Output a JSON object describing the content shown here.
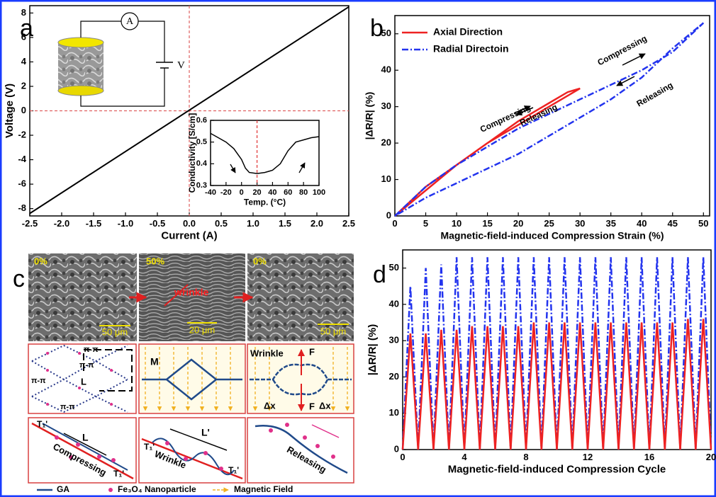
{
  "chart_data": [
    {
      "type": "line",
      "label": "a",
      "xlabel": "Current (A)",
      "ylabel": "Voltage (V)",
      "x": [
        -2.5,
        2.5
      ],
      "series": [
        {
          "color": "#000000",
          "style": "solid",
          "values": [
            -8.4,
            8.5
          ]
        }
      ],
      "xlim": [
        -2.5,
        2.5
      ],
      "ylim": [
        -8.6,
        8.6
      ],
      "xticks": [
        -2.5,
        {
          "value": -2.0,
          "label": "-2.0"
        },
        -1.5,
        {
          "value": -1.0,
          "label": "-1.0"
        },
        -0.5,
        {
          "value": 0.0,
          "label": "0.0"
        },
        0.5,
        {
          "value": 1.0,
          "label": "1.0"
        },
        1.5,
        {
          "value": 2.0,
          "label": "2.0"
        },
        2.5
      ],
      "yticks": [
        -8,
        -6,
        -4,
        -2,
        0,
        2,
        4,
        6,
        8
      ],
      "refs": {
        "x": [
          0
        ],
        "y": [
          0
        ],
        "color": "#e06060"
      },
      "schematic_labels": [
        "A",
        "V"
      ]
    },
    {
      "type": "line",
      "label": "b",
      "xlabel": "Magnetic-field-induced Compression Strain (%)",
      "ylabel": "|ΔR/R| (%)",
      "series": [
        {
          "name": "Axial Direction",
          "color": "#ee2222",
          "style": "solid",
          "x": [
            0,
            5,
            10,
            15,
            20,
            25,
            28,
            30,
            28,
            25,
            20,
            15,
            10,
            5,
            0
          ],
          "values": [
            0,
            8,
            14,
            20,
            25,
            30,
            33,
            35,
            34,
            31,
            26,
            20,
            14,
            7,
            0
          ]
        },
        {
          "name": "Radial Directoin",
          "color": "#2233ee",
          "style": "dashdot",
          "x": [
            0,
            5,
            10,
            15,
            20,
            25,
            30,
            35,
            40,
            45,
            50,
            45,
            40,
            35,
            30,
            25,
            20,
            15,
            10,
            5,
            0
          ],
          "values": [
            0,
            8,
            14,
            19,
            24,
            28,
            32,
            36,
            40,
            45,
            53,
            46,
            38,
            32,
            27,
            22,
            17,
            13,
            9,
            5,
            0
          ]
        }
      ],
      "xlim": [
        0,
        51
      ],
      "ylim": [
        0,
        55
      ],
      "xticks": [
        0,
        5,
        10,
        15,
        20,
        25,
        30,
        35,
        40,
        45,
        50
      ],
      "yticks": [
        0,
        10,
        20,
        30,
        40,
        50
      ],
      "legend": "top-left",
      "annotations": [
        "Compressing",
        "Releasing",
        "Compressing",
        "Releasing"
      ]
    },
    {
      "type": "line",
      "label": "d",
      "xlabel": "Magnetic-field-induced Compression Cycle",
      "ylabel": "|ΔR/R| (%)",
      "x": [
        0,
        0.5,
        1,
        1.5,
        2,
        2.5,
        3,
        3.5,
        4,
        4.5,
        5,
        5.5,
        6,
        6.5,
        7,
        7.5,
        8,
        8.5,
        9,
        9.5,
        10,
        10.5,
        11,
        11.5,
        12,
        12.5,
        13,
        13.5,
        14,
        14.5,
        15,
        15.5,
        16,
        16.5,
        17,
        17.5,
        18,
        18.5,
        19,
        19.5,
        20
      ],
      "series": [
        {
          "color": "#2233ee",
          "style": "dashdot",
          "values": [
            0,
            45,
            0,
            50,
            0,
            51,
            0,
            53,
            0,
            53,
            0,
            53,
            0,
            53,
            0,
            53,
            0,
            53,
            0,
            53,
            0,
            53,
            0,
            53,
            0,
            53,
            0,
            53,
            0,
            53,
            0,
            53,
            0,
            53,
            0,
            53,
            0,
            53,
            0,
            53,
            0
          ]
        },
        {
          "color": "#ee2222",
          "style": "solid",
          "values": [
            0,
            32,
            0,
            32,
            0,
            33,
            0,
            33,
            0,
            34,
            0,
            34,
            0,
            34,
            0,
            34,
            0,
            35,
            0,
            35,
            0,
            35,
            0,
            35,
            0,
            35,
            0,
            35,
            0,
            35,
            0,
            35,
            0,
            35,
            0,
            35,
            0,
            36,
            0,
            36,
            0
          ]
        }
      ],
      "xlim": [
        0,
        20
      ],
      "ylim": [
        0,
        55
      ],
      "xticks": [
        0,
        4,
        8,
        12,
        16,
        20
      ],
      "yticks": [
        0,
        10,
        20,
        30,
        40,
        50
      ]
    },
    {
      "type": "line",
      "xlabel": "Temp. (°C)",
      "ylabel": "Conductivity [S/cm]",
      "x": [
        -40,
        -30,
        -20,
        -10,
        0,
        5,
        10,
        20,
        30,
        40,
        50,
        60,
        70,
        80,
        90,
        100
      ],
      "series": [
        {
          "color": "#000000",
          "style": "solid",
          "values": [
            0.54,
            0.52,
            0.5,
            0.47,
            0.42,
            0.38,
            0.36,
            0.355,
            0.36,
            0.37,
            0.4,
            0.46,
            0.5,
            0.51,
            0.52,
            0.525
          ]
        }
      ],
      "xlim": [
        -40,
        100
      ],
      "ylim": [
        0.3,
        0.6
      ],
      "xticks": [
        -40,
        -20,
        0,
        20,
        40,
        60,
        80,
        100
      ],
      "yticks": [
        0.3,
        0.4,
        0.5,
        0.6
      ],
      "refs": {
        "x": [
          20
        ],
        "color": "#e03030"
      }
    }
  ],
  "diagram": {
    "label": "c",
    "sem": [
      {
        "strain": "0%",
        "scale": "50 μm"
      },
      {
        "strain": "50%",
        "scale": "20 μm",
        "note": "wrinkle"
      },
      {
        "strain": "0%",
        "scale": "50 μm"
      }
    ],
    "schematic_top": {
      "pi_labels": [
        "π-π",
        "π-π",
        "π-π",
        "π-π"
      ],
      "length": "L",
      "field": "M",
      "wrinkle": "Wrinkle",
      "force": [
        "F",
        "F"
      ],
      "dx": [
        "Δx",
        "Δx"
      ]
    },
    "schematic_bottom": {
      "compressing": "Compressing",
      "length": "L",
      "tension": [
        "T₁'",
        "T₁'",
        "T₁'",
        "T₁'"
      ],
      "wrinkle": "Wrinkle",
      "length2": "L'",
      "releasing": "Releasing"
    },
    "legend": [
      "GA",
      "Fe₃O₄ Nanoparticle",
      "Magnetic Field"
    ]
  }
}
